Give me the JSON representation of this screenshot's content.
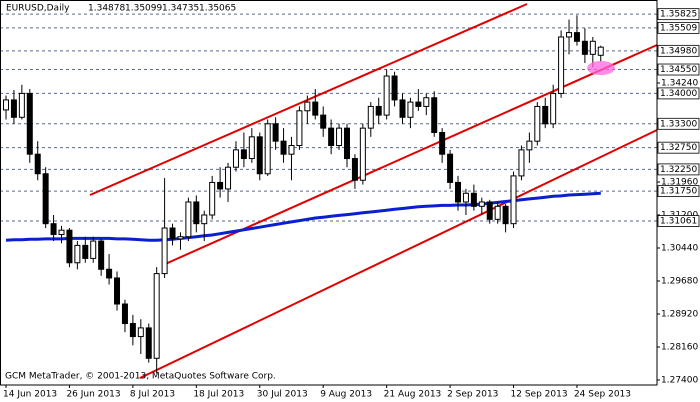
{
  "chart_data": {
    "type": "candlestick",
    "title": "EURUSD,Daily",
    "footer": "GCM MetaTrader, © 2001-2013, MetaQuotes Software Corp.",
    "categories": [
      "14 Jun 2013",
      null,
      null,
      null,
      null,
      null,
      null,
      null,
      "26 Jun 2013",
      null,
      null,
      null,
      null,
      null,
      null,
      null,
      "8 Jul 2013",
      null,
      null,
      null,
      null,
      null,
      null,
      null,
      "18 Jul 2013",
      null,
      null,
      null,
      null,
      null,
      null,
      null,
      "30 Jul 2013",
      null,
      null,
      null,
      null,
      null,
      null,
      null,
      "9 Aug 2013",
      null,
      null,
      null,
      null,
      null,
      null,
      null,
      "21 Aug 2013",
      null,
      null,
      null,
      null,
      null,
      null,
      null,
      "2 Sep 2013",
      null,
      null,
      null,
      null,
      null,
      null,
      null,
      "12 Sep 2013",
      null,
      null,
      null,
      null,
      null,
      null,
      null,
      "24 Sep 2013",
      null,
      null,
      null
    ],
    "open": [
      1.3362,
      1.3385,
      1.3345,
      1.34,
      1.326,
      1.3215,
      1.31,
      1.3075,
      1.3085,
      1.301,
      1.305,
      1.302,
      1.306,
      1.2995,
      1.2975,
      1.2915,
      1.287,
      1.284,
      1.286,
      1.279,
      1.2985,
      1.309,
      1.3065,
      1.307,
      1.315,
      1.31,
      1.312,
      1.3195,
      1.318,
      1.323,
      1.327,
      1.325,
      1.33,
      1.3215,
      1.333,
      1.329,
      1.326,
      1.328,
      1.336,
      1.338,
      1.335,
      1.332,
      1.328,
      1.332,
      1.325,
      1.32,
      1.332,
      1.337,
      1.335,
      1.344,
      1.3385,
      1.3345,
      1.338,
      1.337,
      1.339,
      1.331,
      1.326,
      1.3195,
      1.315,
      1.317,
      1.314,
      1.315,
      1.311,
      1.314,
      1.31,
      1.321,
      1.327,
      1.329,
      1.337,
      1.333,
      1.34,
      1.353,
      1.354,
      1.352,
      1.349,
      1.34878
    ],
    "high": [
      1.3395,
      1.3408,
      1.342,
      1.341,
      1.329,
      1.323,
      1.312,
      1.3095,
      1.309,
      1.306,
      1.307,
      1.307,
      1.3065,
      1.303,
      1.299,
      1.2925,
      1.289,
      1.288,
      1.287,
      1.3,
      1.3205,
      1.31,
      1.308,
      1.316,
      1.3165,
      1.313,
      1.321,
      1.323,
      1.324,
      1.329,
      1.331,
      1.332,
      1.331,
      1.334,
      1.3345,
      1.332,
      1.33,
      1.337,
      1.3395,
      1.341,
      1.337,
      1.334,
      1.333,
      1.333,
      1.326,
      1.333,
      1.338,
      1.339,
      1.3455,
      1.345,
      1.34,
      1.339,
      1.341,
      1.34,
      1.3405,
      1.332,
      1.327,
      1.321,
      1.318,
      1.319,
      1.316,
      1.3155,
      1.315,
      1.3145,
      1.322,
      1.328,
      1.331,
      1.338,
      1.339,
      1.342,
      1.3545,
      1.357,
      1.358,
      1.355,
      1.353,
      1.35099
    ],
    "low": [
      1.334,
      1.333,
      1.334,
      1.324,
      1.32,
      1.309,
      1.306,
      1.3055,
      1.3,
      1.2995,
      1.301,
      1.301,
      1.298,
      1.296,
      1.29,
      1.285,
      1.282,
      1.28,
      1.278,
      1.2755,
      1.2975,
      1.305,
      1.304,
      1.306,
      1.308,
      1.306,
      1.311,
      1.316,
      1.315,
      1.322,
      1.323,
      1.324,
      1.32,
      1.321,
      1.327,
      1.324,
      1.32,
      1.327,
      1.333,
      1.334,
      1.33,
      1.326,
      1.327,
      1.323,
      1.318,
      1.319,
      1.33,
      1.333,
      1.334,
      1.337,
      1.333,
      1.332,
      1.336,
      1.335,
      1.33,
      1.324,
      1.318,
      1.313,
      1.312,
      1.313,
      1.312,
      1.31,
      1.31,
      1.308,
      1.309,
      1.32,
      1.324,
      1.328,
      1.332,
      1.332,
      1.339,
      1.349,
      1.351,
      1.347,
      1.346,
      1.34735
    ],
    "close": [
      1.3385,
      1.3345,
      1.34,
      1.326,
      1.3215,
      1.31,
      1.3075,
      1.3085,
      1.301,
      1.305,
      1.302,
      1.306,
      1.2995,
      1.2975,
      1.2915,
      1.287,
      1.284,
      1.286,
      1.279,
      1.2985,
      1.309,
      1.3065,
      1.307,
      1.315,
      1.31,
      1.312,
      1.3195,
      1.318,
      1.323,
      1.327,
      1.325,
      1.33,
      1.3215,
      1.333,
      1.329,
      1.326,
      1.328,
      1.336,
      1.338,
      1.335,
      1.332,
      1.328,
      1.332,
      1.325,
      1.32,
      1.332,
      1.337,
      1.335,
      1.344,
      1.3385,
      1.3345,
      1.338,
      1.337,
      1.339,
      1.331,
      1.326,
      1.3195,
      1.315,
      1.317,
      1.314,
      1.315,
      1.311,
      1.314,
      1.31,
      1.321,
      1.327,
      1.329,
      1.337,
      1.333,
      1.34,
      1.353,
      1.354,
      1.352,
      1.349,
      1.352,
      1.35065
    ],
    "moving_average": {
      "color": "#0a1fd0",
      "values": [
        1.3062,
        1.3063,
        1.3063,
        1.3064,
        1.3064,
        1.3065,
        1.3065,
        1.3065,
        1.3066,
        1.3066,
        1.3066,
        1.3066,
        1.3066,
        1.3066,
        1.3065,
        1.3065,
        1.3064,
        1.3063,
        1.3062,
        1.3062,
        1.3063,
        1.3064,
        1.3066,
        1.3068,
        1.307,
        1.3072,
        1.3074,
        1.3077,
        1.308,
        1.3083,
        1.3086,
        1.3089,
        1.3092,
        1.3095,
        1.3098,
        1.3101,
        1.3104,
        1.3107,
        1.311,
        1.3113,
        1.3115,
        1.3117,
        1.3119,
        1.3121,
        1.3123,
        1.3125,
        1.3127,
        1.3129,
        1.3131,
        1.3133,
        1.3135,
        1.3137,
        1.3139,
        1.314,
        1.3141,
        1.3142,
        1.3142,
        1.3143,
        1.3143,
        1.3144,
        1.3145,
        1.3147,
        1.3149,
        1.3151,
        1.3153,
        1.3155,
        1.3157,
        1.3159,
        1.3161,
        1.3163,
        1.3164,
        1.3166,
        1.3167,
        1.3168,
        1.3169,
        1.317
      ]
    },
    "ylim": [
      1.27285,
      1.36151
    ],
    "yticks": [
      {
        "value": 1.274,
        "label": "1.27400"
      },
      {
        "value": 1.2816,
        "label": "1.28160"
      },
      {
        "value": 1.2892,
        "label": "1.28920"
      },
      {
        "value": 1.2968,
        "label": "1.29680"
      },
      {
        "value": 1.3044,
        "label": "1.30440"
      },
      {
        "value": 1.312,
        "label": "1.31200"
      },
      {
        "value": 1.3196,
        "label": "1.31960"
      },
      {
        "value": 1.3424,
        "label": "1.34240"
      }
    ],
    "levels": [
      1.35825,
      1.35509,
      {
        "value": 1.3498,
        "label": "1.34980"
      },
      {
        "value": 1.3455,
        "label": "1.34550"
      },
      {
        "value": 1.34,
        "label": "1.34000"
      },
      {
        "value": 1.333,
        "label": "1.33300"
      },
      {
        "value": 1.3275,
        "label": "1.32750"
      },
      {
        "value": 1.3225,
        "label": "1.32250"
      },
      {
        "value": 1.3175,
        "label": "1.31750"
      },
      1.31061
    ],
    "level_color": "#5a6a8a",
    "bull_color": "#ffffff",
    "bear_color": "#000000"
  }
}
